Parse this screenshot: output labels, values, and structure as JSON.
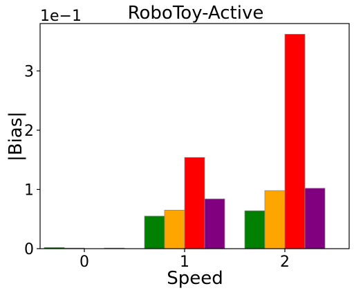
{
  "chart_data": {
    "type": "bar",
    "title": "RoboToy-Active",
    "xlabel": "Speed",
    "ylabel": "|Bias|",
    "y_multiplier_label": "1e−1",
    "categories": [
      "0",
      "1",
      "2"
    ],
    "yticks": [
      "0",
      "1",
      "2",
      "3"
    ],
    "ylim": [
      0,
      3.8
    ],
    "series": [
      {
        "color": "#008000",
        "values": [
          0.02,
          0.55,
          0.64
        ]
      },
      {
        "color": "#FFA500",
        "values": [
          0.01,
          0.65,
          0.98
        ]
      },
      {
        "color": "#FF0000",
        "values": [
          0.0,
          1.54,
          3.62
        ]
      },
      {
        "color": "#800080",
        "values": [
          0.01,
          0.84,
          1.02
        ]
      }
    ],
    "grid": false
  }
}
